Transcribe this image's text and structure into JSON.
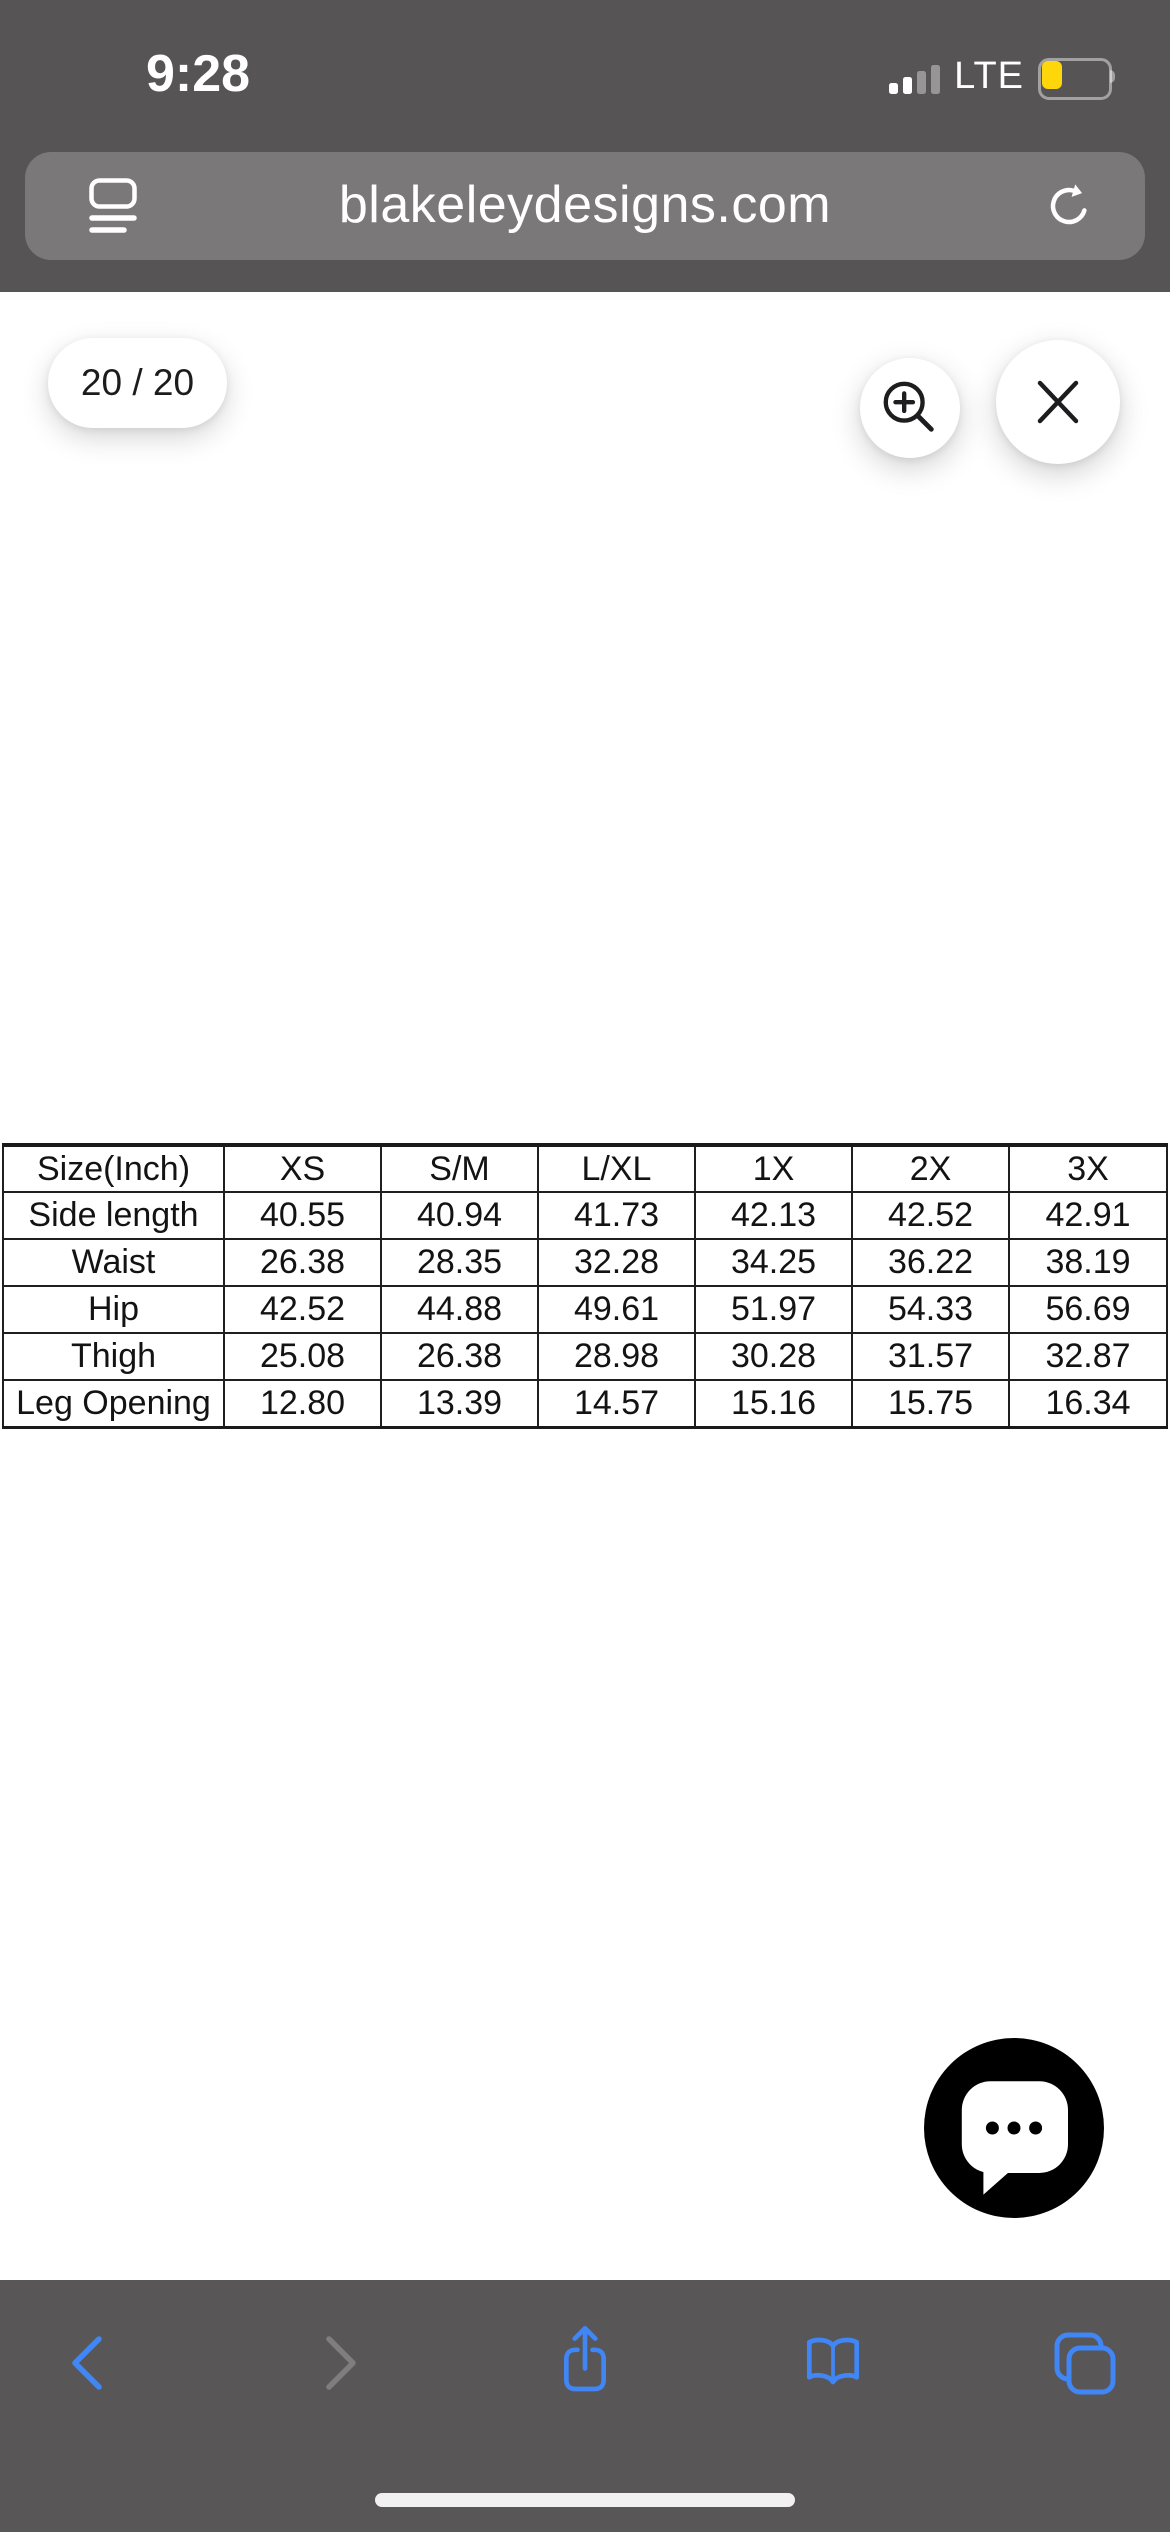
{
  "status_bar": {
    "time": "9:28",
    "network": "LTE",
    "signal_bars_filled": 2,
    "signal_bars_total": 4,
    "battery_percent": 33,
    "battery_color": "#ffd60a"
  },
  "address_bar": {
    "url": "blakeleydesigns.com"
  },
  "image_viewer": {
    "counter": "20 / 20"
  },
  "size_chart": {
    "columns": [
      "Size(Inch)",
      "XS",
      "S/M",
      "L/XL",
      "1X",
      "2X",
      "3X"
    ],
    "rows": [
      {
        "label": "Side length",
        "values": [
          "40.55",
          "40.94",
          "41.73",
          "42.13",
          "42.52",
          "42.91"
        ]
      },
      {
        "label": "Waist",
        "values": [
          "26.38",
          "28.35",
          "32.28",
          "34.25",
          "36.22",
          "38.19"
        ]
      },
      {
        "label": "Hip",
        "values": [
          "42.52",
          "44.88",
          "49.61",
          "51.97",
          "54.33",
          "56.69"
        ]
      },
      {
        "label": "Thigh",
        "values": [
          "25.08",
          "26.38",
          "28.98",
          "30.28",
          "31.57",
          "32.87"
        ]
      },
      {
        "label": "Leg Opening",
        "values": [
          "12.80",
          "13.39",
          "14.57",
          "15.16",
          "15.75",
          "16.34"
        ]
      }
    ]
  },
  "colors": {
    "accent_blue": "#4086f4",
    "disabled_gray": "#7f7d7e",
    "chrome_dark": "#575455",
    "url_bar_gray": "#7b787a",
    "icon_dark": "#1d1d1f"
  }
}
